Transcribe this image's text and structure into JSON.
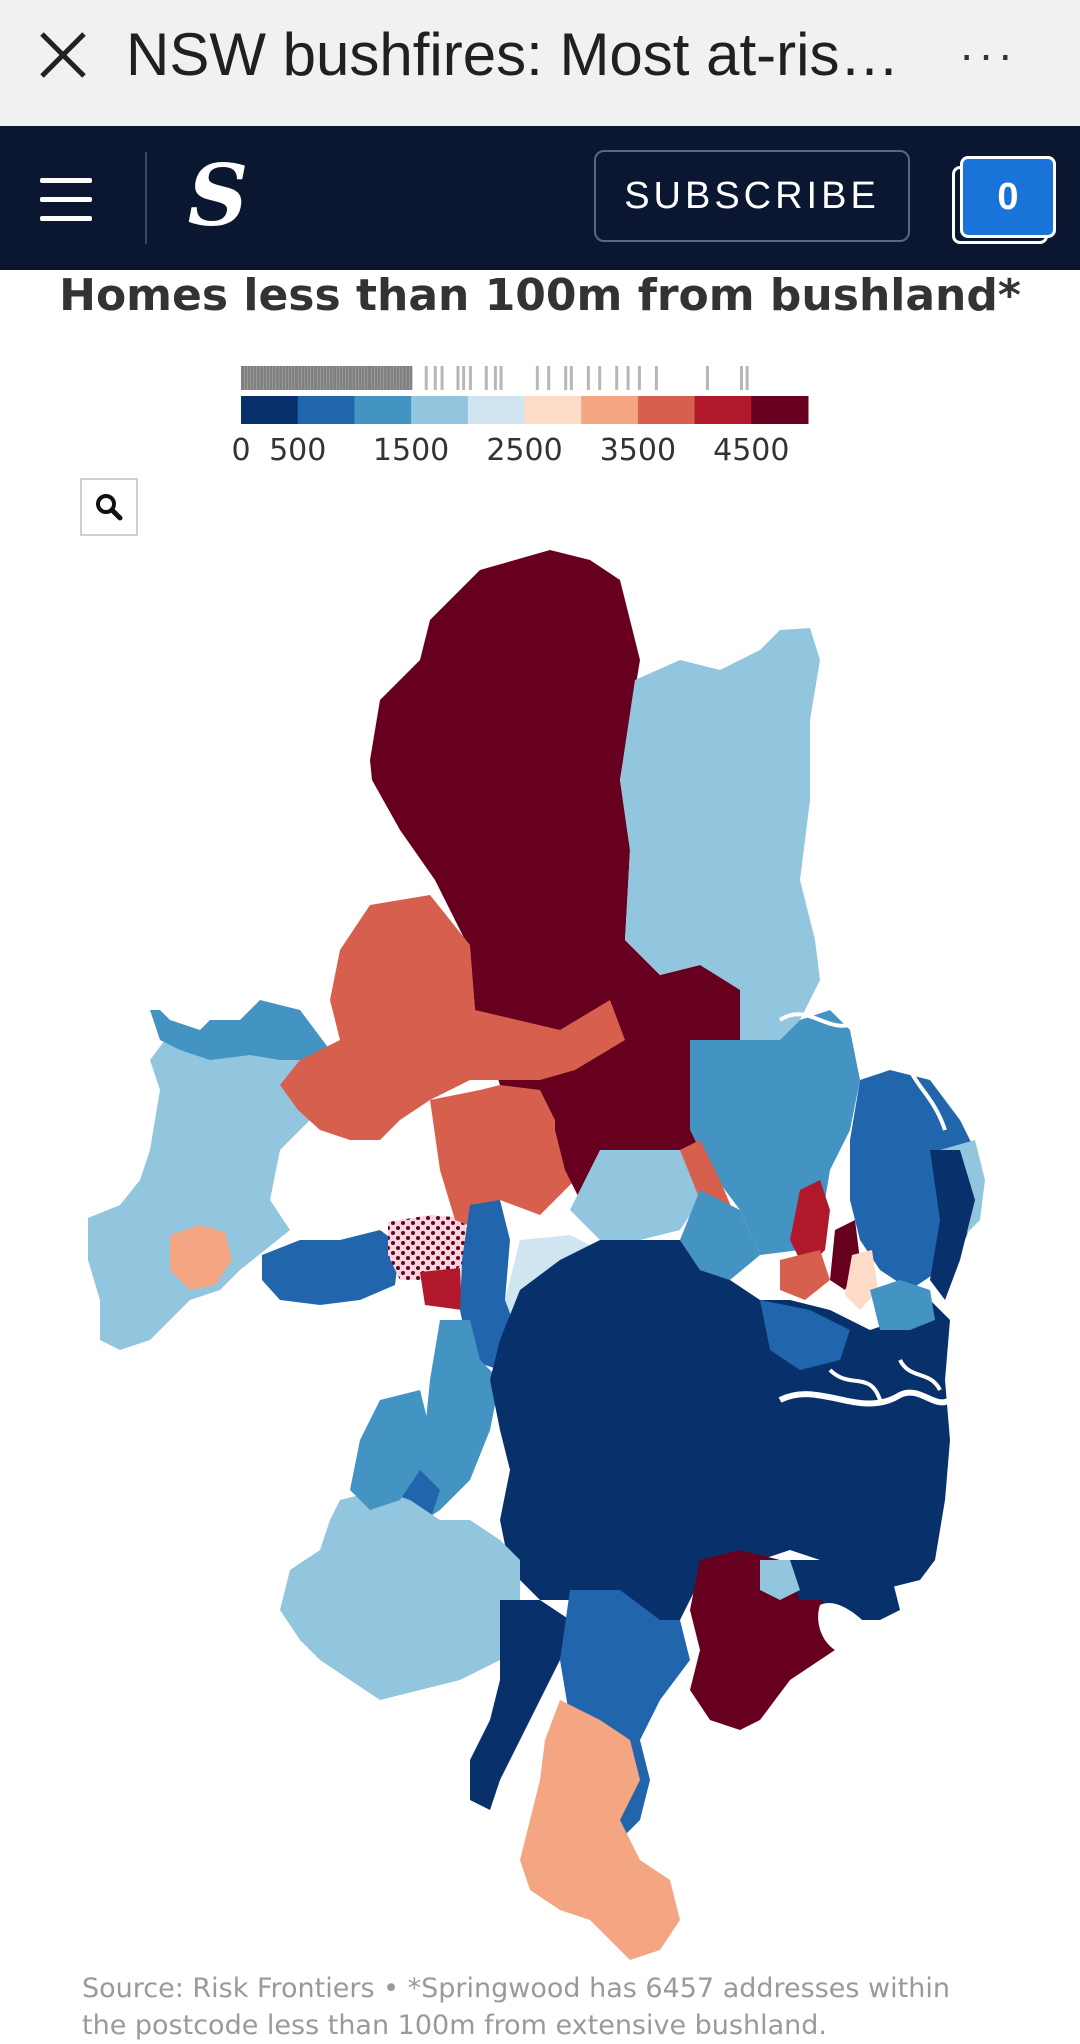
{
  "browser": {
    "title": "NSW bushfires: Most at-risk suburbs",
    "close_icon": "close-icon",
    "more_icon": "more-horizontal-icon",
    "more_label": "···"
  },
  "site_header": {
    "logo_text": "S",
    "subscribe_label": "SUBSCRIBE",
    "counter_value": "0"
  },
  "chart": {
    "title": "Homes less than 100m from bushland*",
    "legend": {
      "tick_labels": [
        "0",
        "500",
        "1500",
        "2500",
        "3500",
        "4500"
      ],
      "bins": [
        {
          "from": 0,
          "to": 500,
          "color": "#08306b"
        },
        {
          "from": 500,
          "to": 1000,
          "color": "#2166ac"
        },
        {
          "from": 1000,
          "to": 1500,
          "color": "#4393c3"
        },
        {
          "from": 1500,
          "to": 2000,
          "color": "#92c5de"
        },
        {
          "from": 2000,
          "to": 2500,
          "color": "#d1e5f0"
        },
        {
          "from": 2500,
          "to": 3000,
          "color": "#fddbc7"
        },
        {
          "from": 3000,
          "to": 3500,
          "color": "#f4a582"
        },
        {
          "from": 3500,
          "to": 4000,
          "color": "#d6604d"
        },
        {
          "from": 4000,
          "to": 4500,
          "color": "#b2182b"
        },
        {
          "from": 4500,
          "to": 5000,
          "color": "#67001f"
        }
      ]
    },
    "search_icon": "search-icon",
    "source": "Source: Risk Frontiers • *Springwood has 6457 addresses within the postcode less than 100m from extensive bushland."
  },
  "colors": {
    "header_bg": "#0b1631",
    "accent": "#1a73d9"
  }
}
